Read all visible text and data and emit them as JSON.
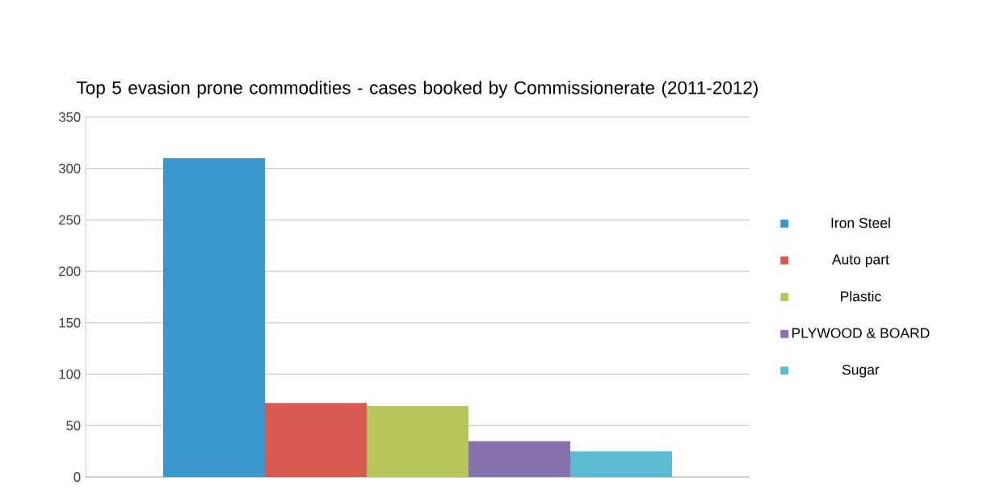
{
  "chart_data": {
    "type": "bar",
    "title": "Top 5 evasion prone commodities  - cases booked by Commissionerate (2011-2012)",
    "categories": [
      null
    ],
    "series": [
      {
        "name": "Iron Steel",
        "color": "#3a96cb",
        "values": [
          310
        ]
      },
      {
        "name": "Auto part",
        "color": "#d55a50",
        "values": [
          72
        ]
      },
      {
        "name": "Plastic",
        "color": "#b8c55a",
        "values": [
          69
        ]
      },
      {
        "name": "PLYWOOD & BOARD",
        "color": "#8872ad",
        "values": [
          35
        ]
      },
      {
        "name": "Sugar",
        "color": "#5bbbd3",
        "values": [
          25
        ]
      }
    ],
    "ylim": [
      0,
      350
    ],
    "yticks": [
      0,
      50,
      100,
      150,
      200,
      250,
      300,
      350
    ],
    "grid": "y",
    "legend": "right"
  }
}
